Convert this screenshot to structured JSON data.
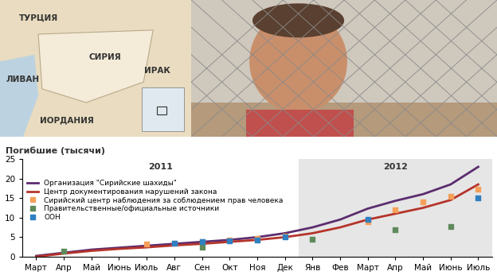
{
  "map": {
    "labels": [
      "ТУРЦИЯ",
      "СИРИЯ",
      "ЛИВАН",
      "ИРАК",
      "ИОРДАНИЯ"
    ]
  },
  "chart_data": {
    "type": "line",
    "y_label": "Погибшие (тысячи)",
    "categories": [
      "Март",
      "Апр",
      "Май",
      "Июнь",
      "Июль",
      "Авг",
      "Сен",
      "Окт",
      "Ноя",
      "Дек",
      "Янв",
      "Фев",
      "Март",
      "Апр",
      "Май",
      "Июнь",
      "Июль"
    ],
    "periods": [
      {
        "label": "2011",
        "start": 0,
        "end": 9
      },
      {
        "label": "2012",
        "start": 10,
        "end": 16
      }
    ],
    "ylim": [
      0,
      25
    ],
    "yticks": [
      0,
      5,
      10,
      15,
      20,
      25
    ],
    "grid": false,
    "legend": "upper left",
    "series": [
      {
        "name": "Организация \"Сирийские шахиды\"",
        "type": "line",
        "line_style": "solid",
        "color": "#5c2d6e",
        "values": [
          0.2,
          1.0,
          1.8,
          2.3,
          2.8,
          3.3,
          3.8,
          4.3,
          5.0,
          6.0,
          7.5,
          9.5,
          12.3,
          14.3,
          16.0,
          18.5,
          23.0
        ]
      },
      {
        "name": "Центр документирования нарушений закона",
        "type": "line",
        "line_style": "solid",
        "color": "#b5342a",
        "values": [
          0.0,
          0.8,
          1.5,
          2.0,
          2.4,
          2.9,
          3.3,
          3.8,
          4.3,
          5.0,
          6.0,
          7.5,
          9.5,
          11.0,
          12.5,
          14.5,
          18.5
        ]
      },
      {
        "name": "Сирийский центр наблюдения за соблюдением прав человека",
        "type": "scatter",
        "marker": "square",
        "color": "#f5a05a",
        "values": [
          null,
          null,
          null,
          null,
          3.2,
          3.5,
          3.8,
          4.2,
          4.6,
          5.2,
          null,
          null,
          9.0,
          12.0,
          14.0,
          15.5,
          17.2
        ]
      },
      {
        "name": "Правительственные/официальные источники",
        "type": "scatter",
        "marker": "square",
        "color": "#5f8a5c",
        "values": [
          null,
          1.5,
          null,
          null,
          null,
          null,
          2.5,
          null,
          null,
          null,
          4.5,
          null,
          null,
          7.0,
          null,
          7.8,
          null
        ]
      },
      {
        "name": "ООН",
        "type": "scatter",
        "marker": "square",
        "color": "#2f7fc1",
        "values": [
          null,
          null,
          null,
          null,
          null,
          3.5,
          3.8,
          4.1,
          4.3,
          5.0,
          null,
          null,
          9.5,
          null,
          null,
          null,
          15.0
        ]
      }
    ]
  }
}
